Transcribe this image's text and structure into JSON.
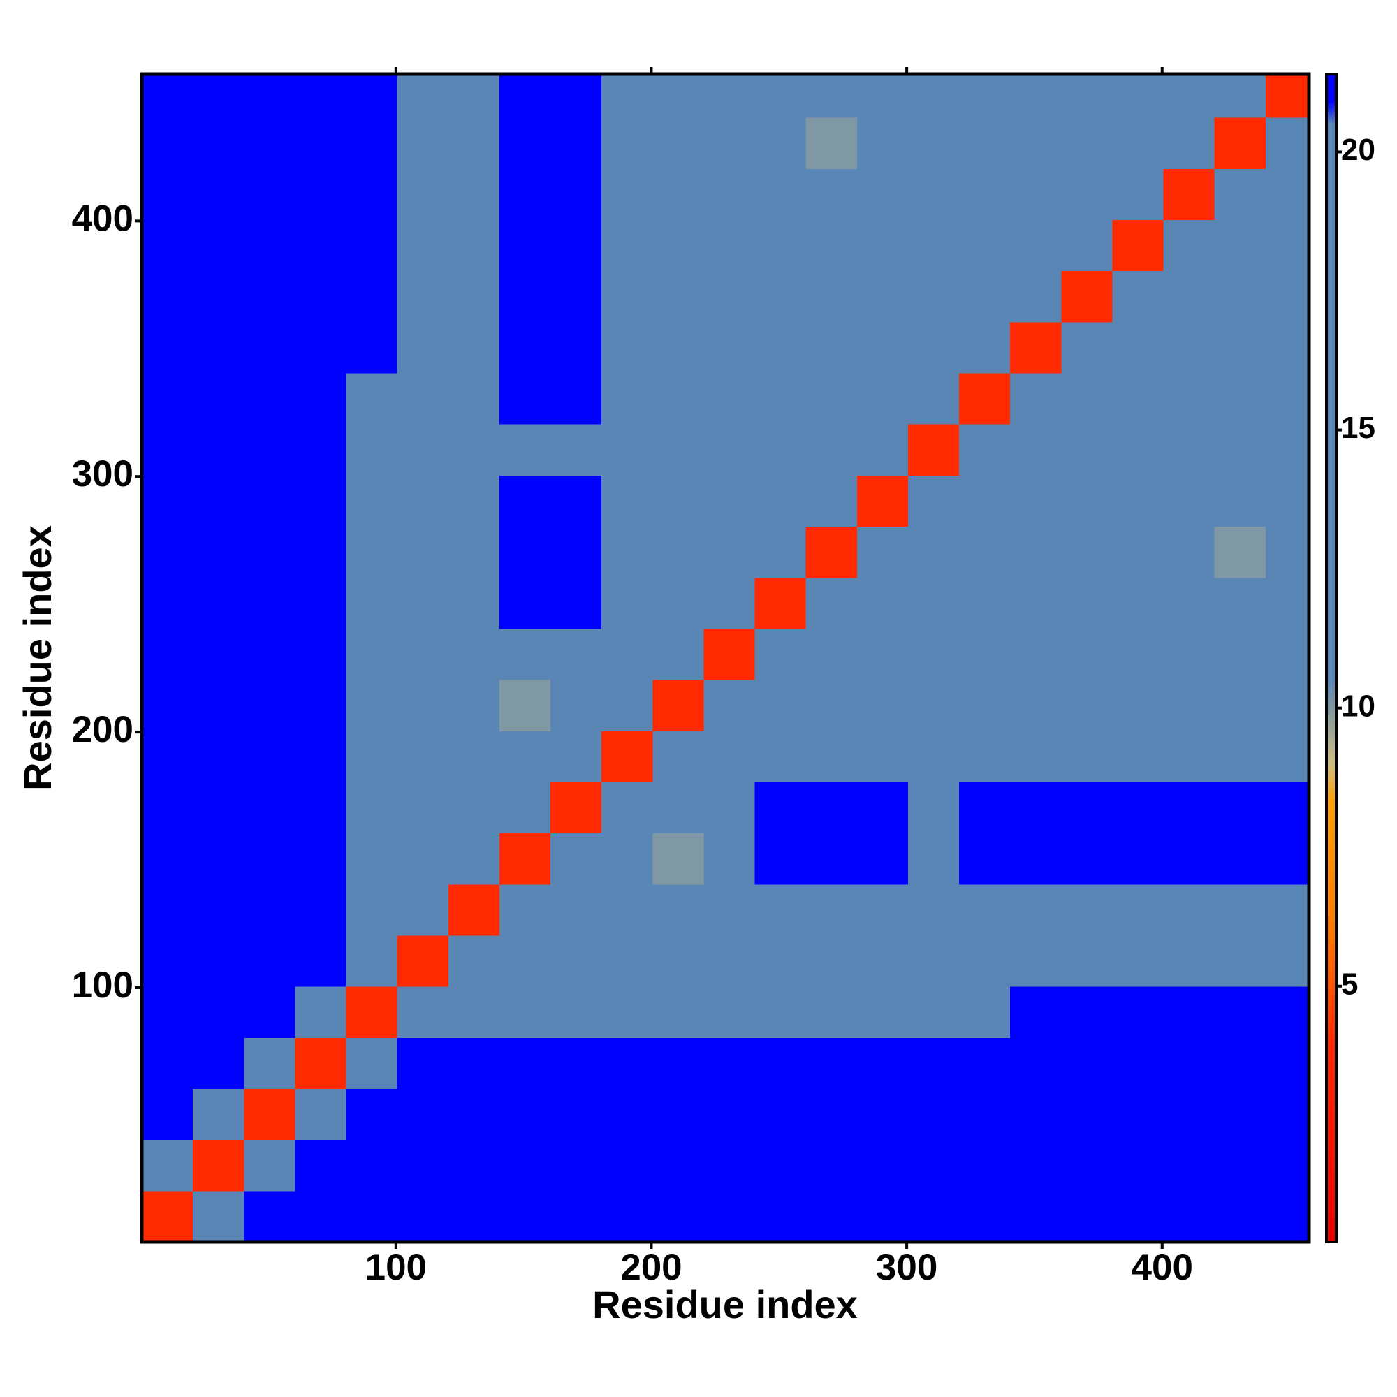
{
  "chart_data": {
    "type": "heatmap",
    "x_label": "Residue index",
    "y_label": "Residue index",
    "x_bins": [
      0.5,
      20.5,
      40.5,
      60.5,
      80.5,
      100.5,
      120.5,
      140.5,
      160.5,
      180.5,
      200.5,
      220.5,
      240.5,
      260.5,
      280.5,
      300.5,
      320.5,
      340.5,
      360.5,
      380.5,
      400.5,
      420.5,
      440.5,
      457.5
    ],
    "y_bins": [
      0.5,
      20.5,
      40.5,
      60.5,
      80.5,
      100.5,
      120.5,
      140.5,
      160.5,
      180.5,
      200.5,
      220.5,
      240.5,
      260.5,
      280.5,
      300.5,
      320.5,
      340.5,
      360.5,
      380.5,
      400.5,
      420.5,
      440.5,
      457.5
    ],
    "xlim": [
      0.5,
      457.5
    ],
    "ylim": [
      0.5,
      457.5
    ],
    "xticks": [
      100,
      200,
      300,
      400
    ],
    "yticks": [
      100,
      200,
      300,
      400
    ],
    "zlim": [
      0.4,
      21.4
    ],
    "zticks": [
      5,
      10,
      15,
      20
    ],
    "colorscale": [
      [
        0.4,
        "#e80000"
      ],
      [
        4,
        "#ff2a00"
      ],
      [
        6,
        "#ff7a00"
      ],
      [
        8.3,
        "#ffa000"
      ],
      [
        9,
        "#cdbd7e"
      ],
      [
        10.5,
        "#5a86b6"
      ],
      [
        20.5,
        "#5a86b6"
      ],
      [
        20.9,
        "#0000ff"
      ],
      [
        21.4,
        "#0000ff"
      ]
    ],
    "z": [
      [
        4,
        13,
        21,
        21,
        21,
        21,
        21,
        21,
        21,
        21,
        21,
        21,
        21,
        21,
        21,
        21,
        21,
        21,
        21,
        21,
        21,
        21,
        21
      ],
      [
        13,
        4,
        13,
        21,
        21,
        21,
        21,
        21,
        21,
        21,
        21,
        21,
        21,
        21,
        21,
        21,
        21,
        21,
        21,
        21,
        21,
        21,
        21
      ],
      [
        21,
        13,
        4,
        13,
        21,
        21,
        21,
        21,
        21,
        21,
        21,
        21,
        21,
        21,
        21,
        21,
        21,
        21,
        21,
        21,
        21,
        21,
        21
      ],
      [
        21,
        21,
        13,
        4,
        13,
        21,
        21,
        21,
        21,
        21,
        21,
        21,
        21,
        21,
        21,
        21,
        21,
        21,
        21,
        21,
        21,
        21,
        21
      ],
      [
        21,
        21,
        21,
        13,
        4,
        11,
        18,
        18,
        18,
        18,
        18,
        18,
        18,
        20,
        20,
        20,
        20,
        21,
        21,
        21,
        21,
        21,
        21
      ],
      [
        21,
        21,
        21,
        21,
        11,
        4,
        11,
        12,
        16,
        16,
        16,
        16,
        16,
        16,
        18,
        12,
        20,
        20,
        20,
        20,
        20,
        20,
        20
      ],
      [
        21,
        21,
        21,
        21,
        18,
        11,
        4,
        11,
        14,
        16,
        16,
        16,
        16,
        16,
        16,
        16,
        19,
        20,
        20,
        20,
        19,
        20,
        20
      ],
      [
        21,
        21,
        21,
        21,
        18,
        12,
        11,
        4,
        11,
        14,
        10,
        16,
        21,
        21,
        21,
        18,
        21,
        21,
        21,
        21,
        21,
        21,
        21
      ],
      [
        21,
        21,
        21,
        21,
        18,
        16,
        14,
        11,
        4,
        11,
        14,
        16,
        21,
        21,
        21,
        19,
        21,
        21,
        21,
        21,
        21,
        21,
        21
      ],
      [
        21,
        21,
        21,
        21,
        18,
        16,
        16,
        14,
        11,
        4,
        11,
        14,
        17,
        16,
        16,
        17,
        12,
        12,
        16,
        16,
        18,
        18,
        18
      ],
      [
        21,
        21,
        21,
        21,
        18,
        16,
        16,
        10,
        14,
        11,
        4,
        11,
        14,
        16,
        16,
        16,
        12,
        16,
        12,
        12,
        12,
        16,
        16
      ],
      [
        21,
        21,
        21,
        21,
        18,
        16,
        16,
        16,
        16,
        14,
        11,
        4,
        11,
        14,
        16,
        16,
        11,
        13,
        16,
        11,
        16,
        16,
        16
      ],
      [
        21,
        21,
        21,
        21,
        18,
        16,
        16,
        21,
        21,
        17,
        14,
        11,
        4,
        11,
        14,
        16,
        11,
        18,
        16,
        12,
        17,
        16,
        12
      ],
      [
        21,
        21,
        21,
        21,
        20,
        16,
        16,
        21,
        21,
        16,
        16,
        14,
        11,
        4,
        11,
        14,
        16,
        18,
        18,
        16,
        16,
        10,
        16
      ],
      [
        21,
        21,
        21,
        21,
        20,
        18,
        16,
        21,
        21,
        16,
        16,
        16,
        14,
        11,
        4,
        11,
        14,
        17,
        19,
        16,
        11,
        12,
        16
      ],
      [
        21,
        21,
        21,
        21,
        20,
        12,
        16,
        18,
        19,
        17,
        16,
        16,
        16,
        14,
        11,
        4,
        11,
        20,
        18,
        16,
        16,
        16,
        16
      ],
      [
        21,
        21,
        21,
        21,
        20,
        20,
        19,
        21,
        21,
        12,
        12,
        11,
        11,
        16,
        14,
        11,
        4,
        11,
        14,
        16,
        11,
        12,
        16
      ],
      [
        21,
        21,
        21,
        21,
        21,
        20,
        20,
        21,
        21,
        12,
        16,
        13,
        18,
        18,
        17,
        20,
        11,
        4,
        11,
        14,
        16,
        16,
        20
      ],
      [
        21,
        21,
        21,
        21,
        21,
        20,
        20,
        21,
        21,
        16,
        12,
        16,
        16,
        18,
        19,
        18,
        14,
        11,
        4,
        11,
        14,
        20,
        16
      ],
      [
        21,
        21,
        21,
        21,
        21,
        20,
        20,
        21,
        21,
        16,
        12,
        11,
        12,
        16,
        16,
        16,
        16,
        14,
        11,
        4,
        11,
        14,
        16
      ],
      [
        21,
        21,
        21,
        21,
        21,
        20,
        19,
        21,
        21,
        18,
        12,
        16,
        17,
        16,
        11,
        16,
        11,
        16,
        14,
        11,
        4,
        11,
        14
      ],
      [
        21,
        21,
        21,
        21,
        21,
        20,
        20,
        21,
        21,
        18,
        16,
        16,
        16,
        10,
        12,
        16,
        12,
        16,
        20,
        14,
        11,
        4,
        11
      ],
      [
        21,
        21,
        21,
        21,
        21,
        20,
        20,
        21,
        21,
        18,
        16,
        16,
        12,
        16,
        16,
        16,
        16,
        20,
        16,
        16,
        14,
        11,
        4
      ]
    ]
  }
}
